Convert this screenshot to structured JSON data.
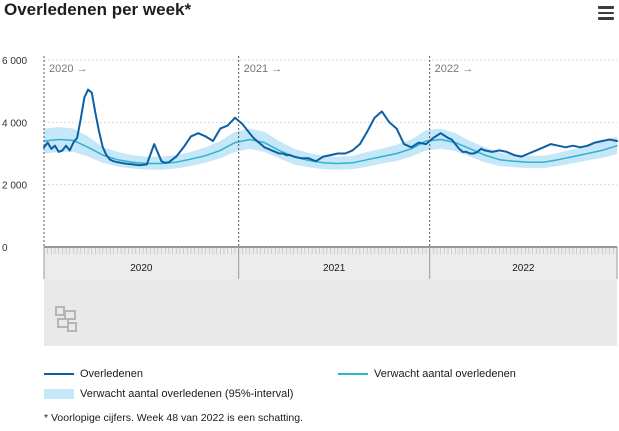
{
  "title": "Overledenen per week*",
  "menu_icon": "hamburger-menu-icon",
  "logo_icon": "cbs-logo-icon",
  "colors": {
    "observed": "#0d5fa3",
    "expected": "#30b3cc",
    "band": "#c5e7f7",
    "footer_bg": "#e9e9e9"
  },
  "legend": {
    "observed": "Overledenen",
    "expected": "Verwacht aantal overledenen",
    "band": "Verwacht aantal overledenen (95%-interval)"
  },
  "footnote": "* Voorlopige cijfers. Week 48 van 2022 is een schatting.",
  "chart_data": {
    "type": "line",
    "y_ticks": [
      "6 000",
      "4 000",
      "2 000",
      "0"
    ],
    "y_tick_values": [
      6000,
      4000,
      2000,
      0
    ],
    "ylim": [
      0,
      6000
    ],
    "year_markers": [
      "2020 →",
      "2021 →",
      "2022 →"
    ],
    "year_labels": [
      "2020",
      "2021",
      "2022"
    ],
    "weeks_per_year": [
      53,
      52,
      52
    ],
    "grid": true,
    "series": [
      {
        "name": "Overledenen",
        "x_week_index": [
          0,
          1,
          2,
          3,
          4,
          5,
          6,
          7,
          8,
          9,
          10,
          11,
          12,
          13,
          14,
          15,
          16,
          17,
          18,
          19,
          20,
          22,
          24,
          26,
          28,
          30,
          32,
          33,
          34,
          36,
          38,
          40,
          42,
          44,
          46,
          48,
          50,
          52,
          54,
          55,
          56,
          57,
          58,
          59,
          60,
          61,
          62,
          63,
          64,
          65,
          66,
          67,
          68,
          70,
          72,
          74,
          76,
          78,
          80,
          82,
          84,
          86,
          88,
          90,
          92,
          94,
          96,
          98,
          100,
          102,
          104,
          106,
          108,
          110,
          111,
          112,
          113,
          114,
          115,
          116,
          117,
          118,
          119,
          120,
          122,
          124,
          126,
          128,
          130,
          132,
          134,
          136,
          138,
          140,
          142,
          144,
          146,
          148,
          150,
          152,
          154,
          156
        ],
        "values": [
          3200,
          3350,
          3150,
          3250,
          3050,
          3100,
          3250,
          3100,
          3350,
          3500,
          4100,
          4800,
          5050,
          4950,
          4300,
          3700,
          3200,
          2950,
          2800,
          2750,
          2720,
          2680,
          2650,
          2620,
          2650,
          3300,
          2750,
          2700,
          2720,
          2900,
          3200,
          3550,
          3650,
          3550,
          3400,
          3800,
          3900,
          4150,
          3950,
          3800,
          3650,
          3500,
          3400,
          3300,
          3200,
          3150,
          3100,
          3050,
          3000,
          3000,
          2950,
          2950,
          2900,
          2850,
          2850,
          2750,
          2900,
          2950,
          3000,
          3000,
          3100,
          3300,
          3700,
          4150,
          4350,
          4000,
          3800,
          3300,
          3200,
          3350,
          3300,
          3500,
          3650,
          3500,
          3450,
          3300,
          3150,
          3050,
          3050,
          3000,
          3000,
          3050,
          3150,
          3100,
          3050,
          3100,
          3050,
          2950,
          2900,
          3000,
          3100,
          3200,
          3300,
          3250,
          3200,
          3250,
          3200,
          3250,
          3350,
          3400,
          3450,
          3400
        ]
      },
      {
        "name": "Verwacht aantal overledenen",
        "x_week_index": [
          0,
          4,
          8,
          12,
          16,
          20,
          24,
          28,
          32,
          36,
          40,
          44,
          48,
          52,
          56,
          60,
          64,
          68,
          72,
          76,
          80,
          84,
          88,
          92,
          96,
          100,
          104,
          108,
          112,
          116,
          120,
          124,
          128,
          132,
          136,
          140,
          144,
          148,
          152,
          156
        ],
        "values": [
          3400,
          3450,
          3420,
          3200,
          2950,
          2800,
          2720,
          2680,
          2680,
          2720,
          2820,
          2930,
          3100,
          3350,
          3450,
          3350,
          3100,
          2900,
          2780,
          2700,
          2680,
          2700,
          2800,
          2900,
          3000,
          3150,
          3400,
          3450,
          3350,
          3150,
          2950,
          2800,
          2750,
          2720,
          2720,
          2800,
          2900,
          3000,
          3100,
          3250
        ]
      },
      {
        "name": "Verwacht aantal overledenen (95%-interval)",
        "x_week_index": [
          0,
          4,
          8,
          12,
          16,
          20,
          24,
          28,
          32,
          36,
          40,
          44,
          48,
          52,
          56,
          60,
          64,
          68,
          72,
          76,
          80,
          84,
          88,
          92,
          96,
          100,
          104,
          108,
          112,
          116,
          120,
          124,
          128,
          132,
          136,
          140,
          144,
          148,
          152,
          156
        ],
        "lower": [
          3000,
          3050,
          3050,
          2900,
          2700,
          2580,
          2520,
          2480,
          2480,
          2520,
          2600,
          2700,
          2850,
          3050,
          3150,
          3050,
          2850,
          2650,
          2560,
          2500,
          2480,
          2500,
          2580,
          2680,
          2760,
          2900,
          3100,
          3150,
          3080,
          2900,
          2720,
          2600,
          2560,
          2530,
          2530,
          2600,
          2690,
          2780,
          2860,
          2980
        ],
        "upper": [
          3800,
          3850,
          3800,
          3550,
          3200,
          3050,
          2950,
          2900,
          2900,
          2950,
          3050,
          3200,
          3400,
          3700,
          3800,
          3700,
          3400,
          3150,
          3020,
          2920,
          2900,
          2920,
          3050,
          3150,
          3280,
          3450,
          3750,
          3800,
          3650,
          3400,
          3200,
          3030,
          2960,
          2930,
          2930,
          3020,
          3130,
          3250,
          3380,
          3550
        ]
      }
    ]
  }
}
